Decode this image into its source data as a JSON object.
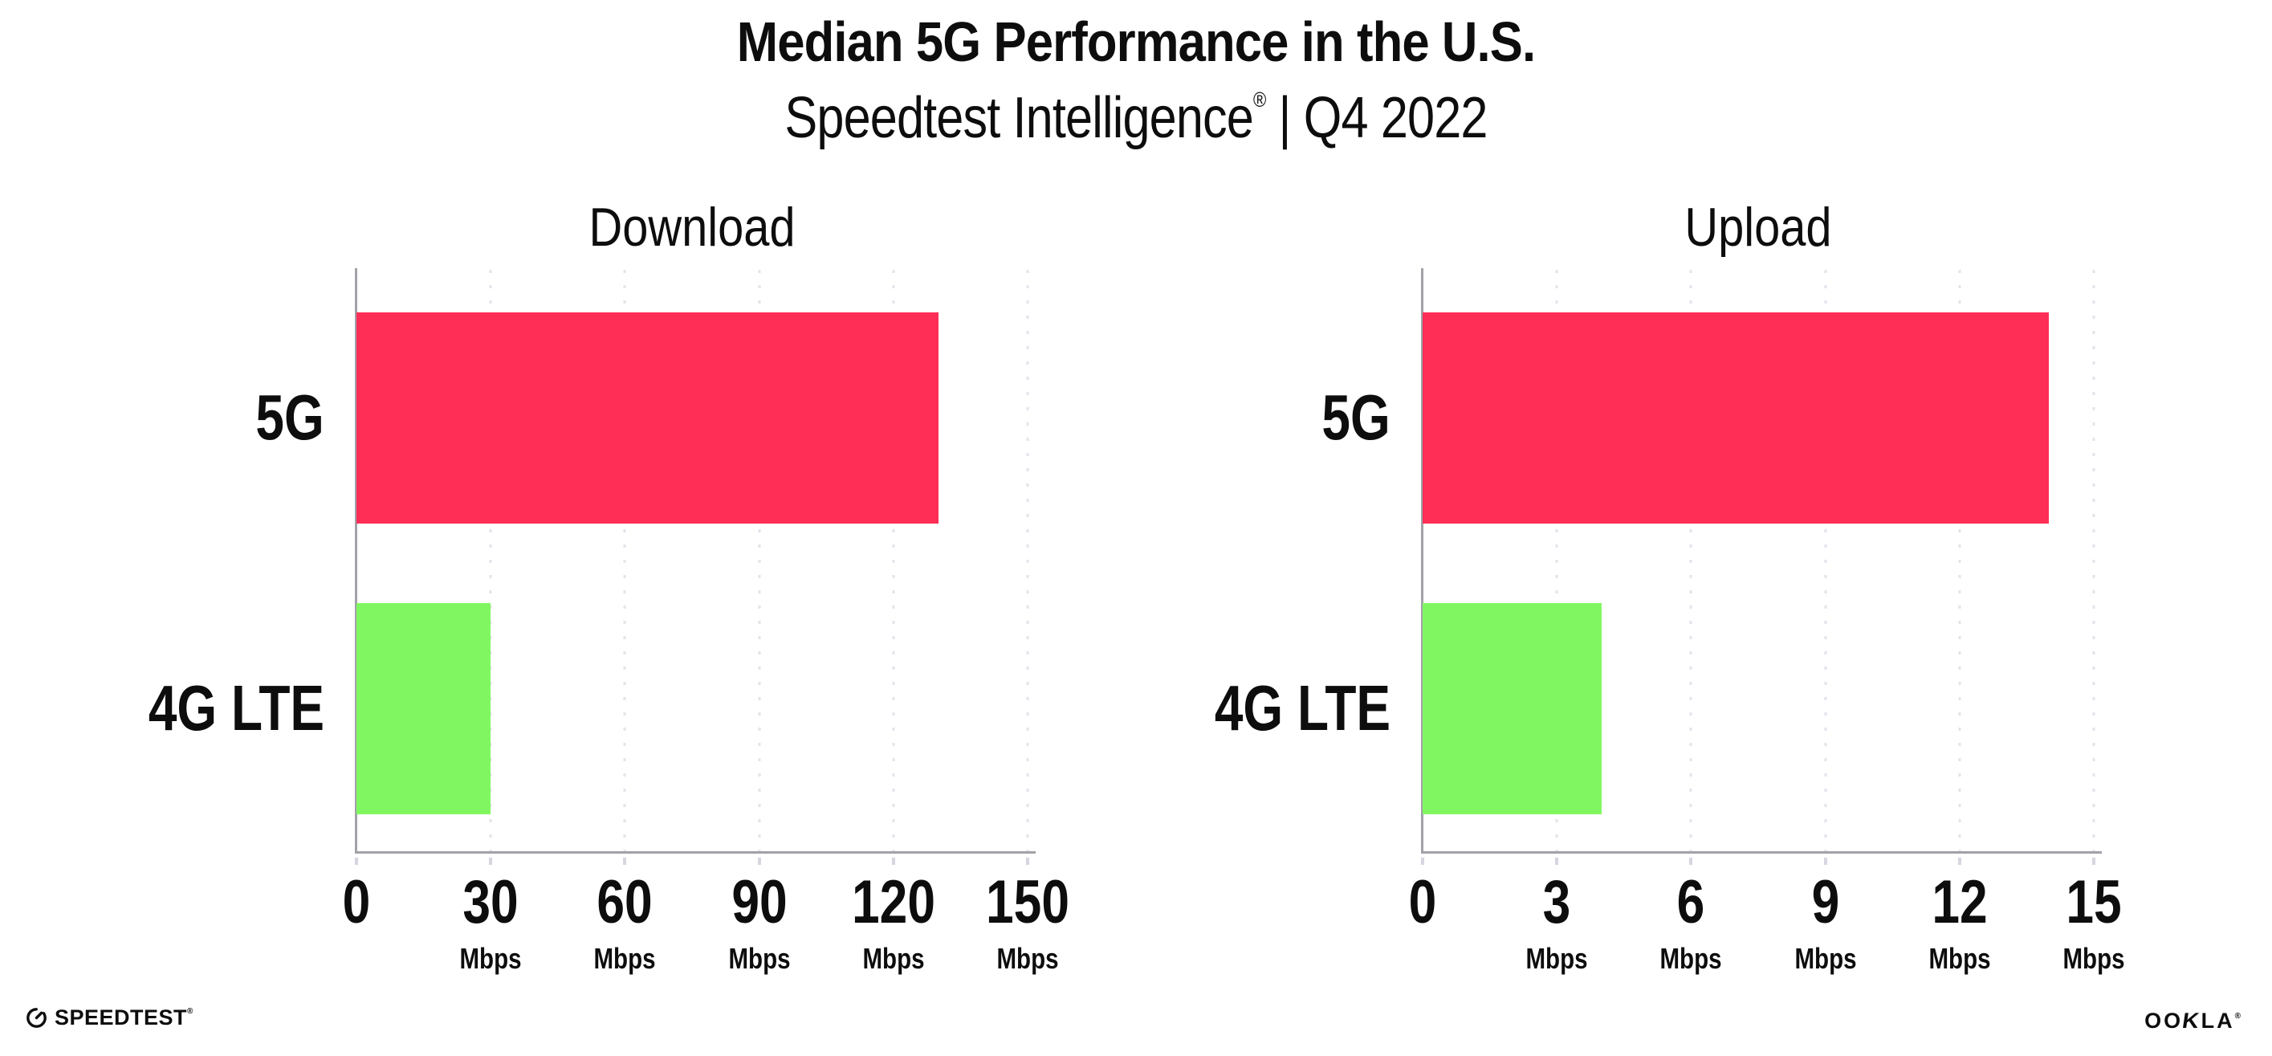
{
  "header": {
    "title": "Median 5G Performance in the U.S.",
    "subtitle_brand": "Speedtest Intelligence",
    "subtitle_reg": "®",
    "subtitle_rest": " | Q4 2022"
  },
  "chart_data": [
    {
      "type": "bar",
      "orientation": "horizontal",
      "title": "Download",
      "categories": [
        "5G",
        "4G LTE"
      ],
      "values": [
        130,
        30
      ],
      "unit": "Mbps",
      "xlim": [
        0,
        150
      ],
      "xticks": [
        0,
        30,
        60,
        90,
        120,
        150
      ],
      "tick_unit_label": "Mbps",
      "bar_colors": [
        "#ff2e57",
        "#80f761"
      ],
      "grid": "dotted-vertical",
      "legend": "none"
    },
    {
      "type": "bar",
      "orientation": "horizontal",
      "title": "Upload",
      "categories": [
        "5G",
        "4G LTE"
      ],
      "values": [
        14,
        4
      ],
      "unit": "Mbps",
      "xlim": [
        0,
        15
      ],
      "xticks": [
        0,
        3,
        6,
        9,
        12,
        15
      ],
      "tick_unit_label": "Mbps",
      "bar_colors": [
        "#ff2e57",
        "#80f761"
      ],
      "grid": "dotted-vertical",
      "legend": "none"
    }
  ],
  "footer": {
    "speedtest_label": "SPEEDTEST",
    "speedtest_reg": "®",
    "ookla_label_oo": "OO",
    "ookla_label_k": "K",
    "ookla_label_la": "LA",
    "ookla_reg": "®"
  },
  "colors": {
    "bar_5g": "#ff2e57",
    "bar_4g_lte": "#80f761",
    "axis": "#a1a1a8",
    "gridline": "#e4e3ec",
    "text": "#0d0d0d",
    "background": "#ffffff"
  }
}
